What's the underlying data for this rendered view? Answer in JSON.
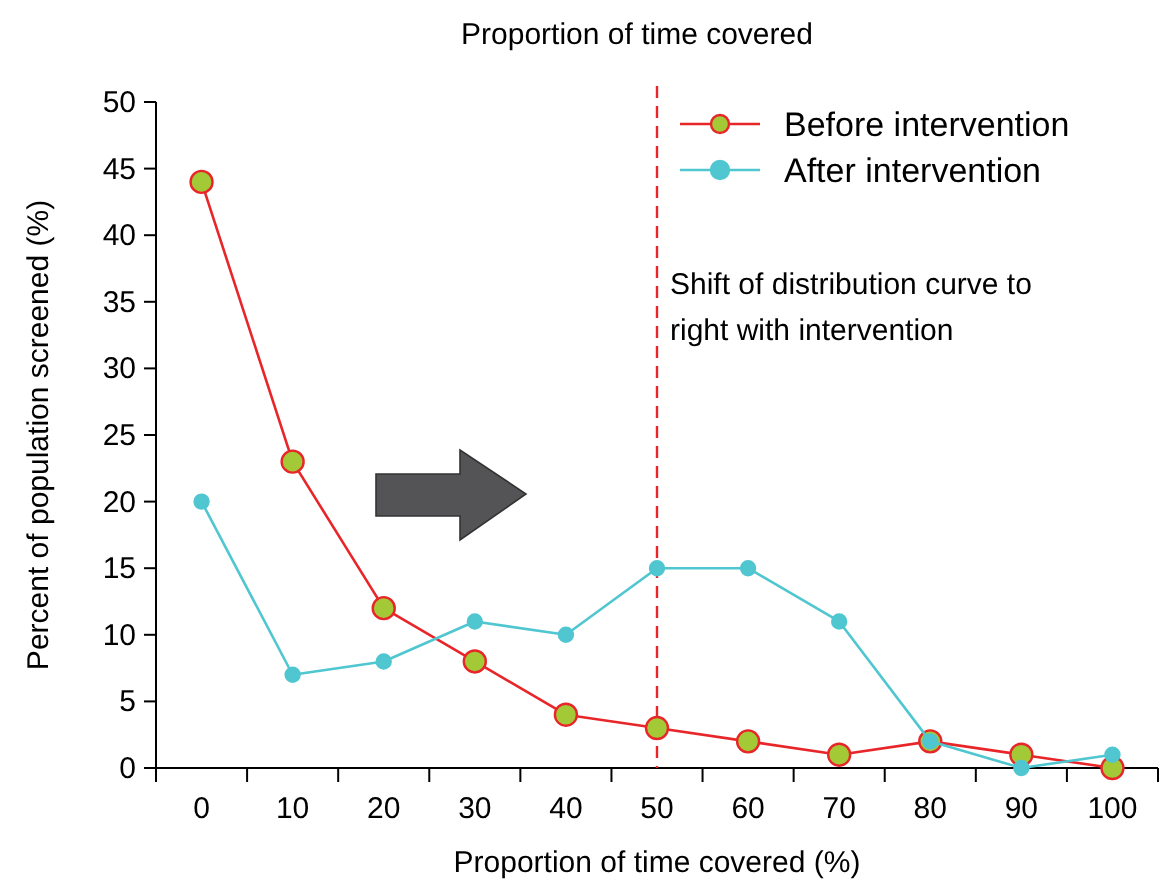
{
  "chart_data": {
    "type": "line",
    "title": "Proportion of time covered",
    "xlabel": "Proportion of time covered (%)",
    "ylabel": "Percent of population screened (%)",
    "categories": [
      "0",
      "10",
      "20",
      "30",
      "40",
      "50",
      "60",
      "70",
      "80",
      "90",
      "100"
    ],
    "series": [
      {
        "name": "Before intervention",
        "color": "#e8262a",
        "values": [
          44,
          23,
          12,
          8,
          4,
          3,
          2,
          1,
          2,
          1,
          0
        ]
      },
      {
        "name": "After intervention",
        "color": "#4fc6d0",
        "values": [
          20,
          7,
          8,
          11,
          10,
          15,
          15,
          11,
          2,
          0,
          1
        ]
      }
    ],
    "ylim": [
      0,
      50
    ],
    "yticks": [
      0,
      5,
      10,
      15,
      20,
      25,
      30,
      35,
      40,
      45,
      50
    ],
    "ref_lines": [
      {
        "axis": "x",
        "value": "50",
        "color": "#e8262a",
        "line_style": "dashed"
      }
    ],
    "annotations": [
      "Shift of distribution curve to right with intervention"
    ],
    "marker": "circle",
    "legend": "top right",
    "grid": false
  }
}
